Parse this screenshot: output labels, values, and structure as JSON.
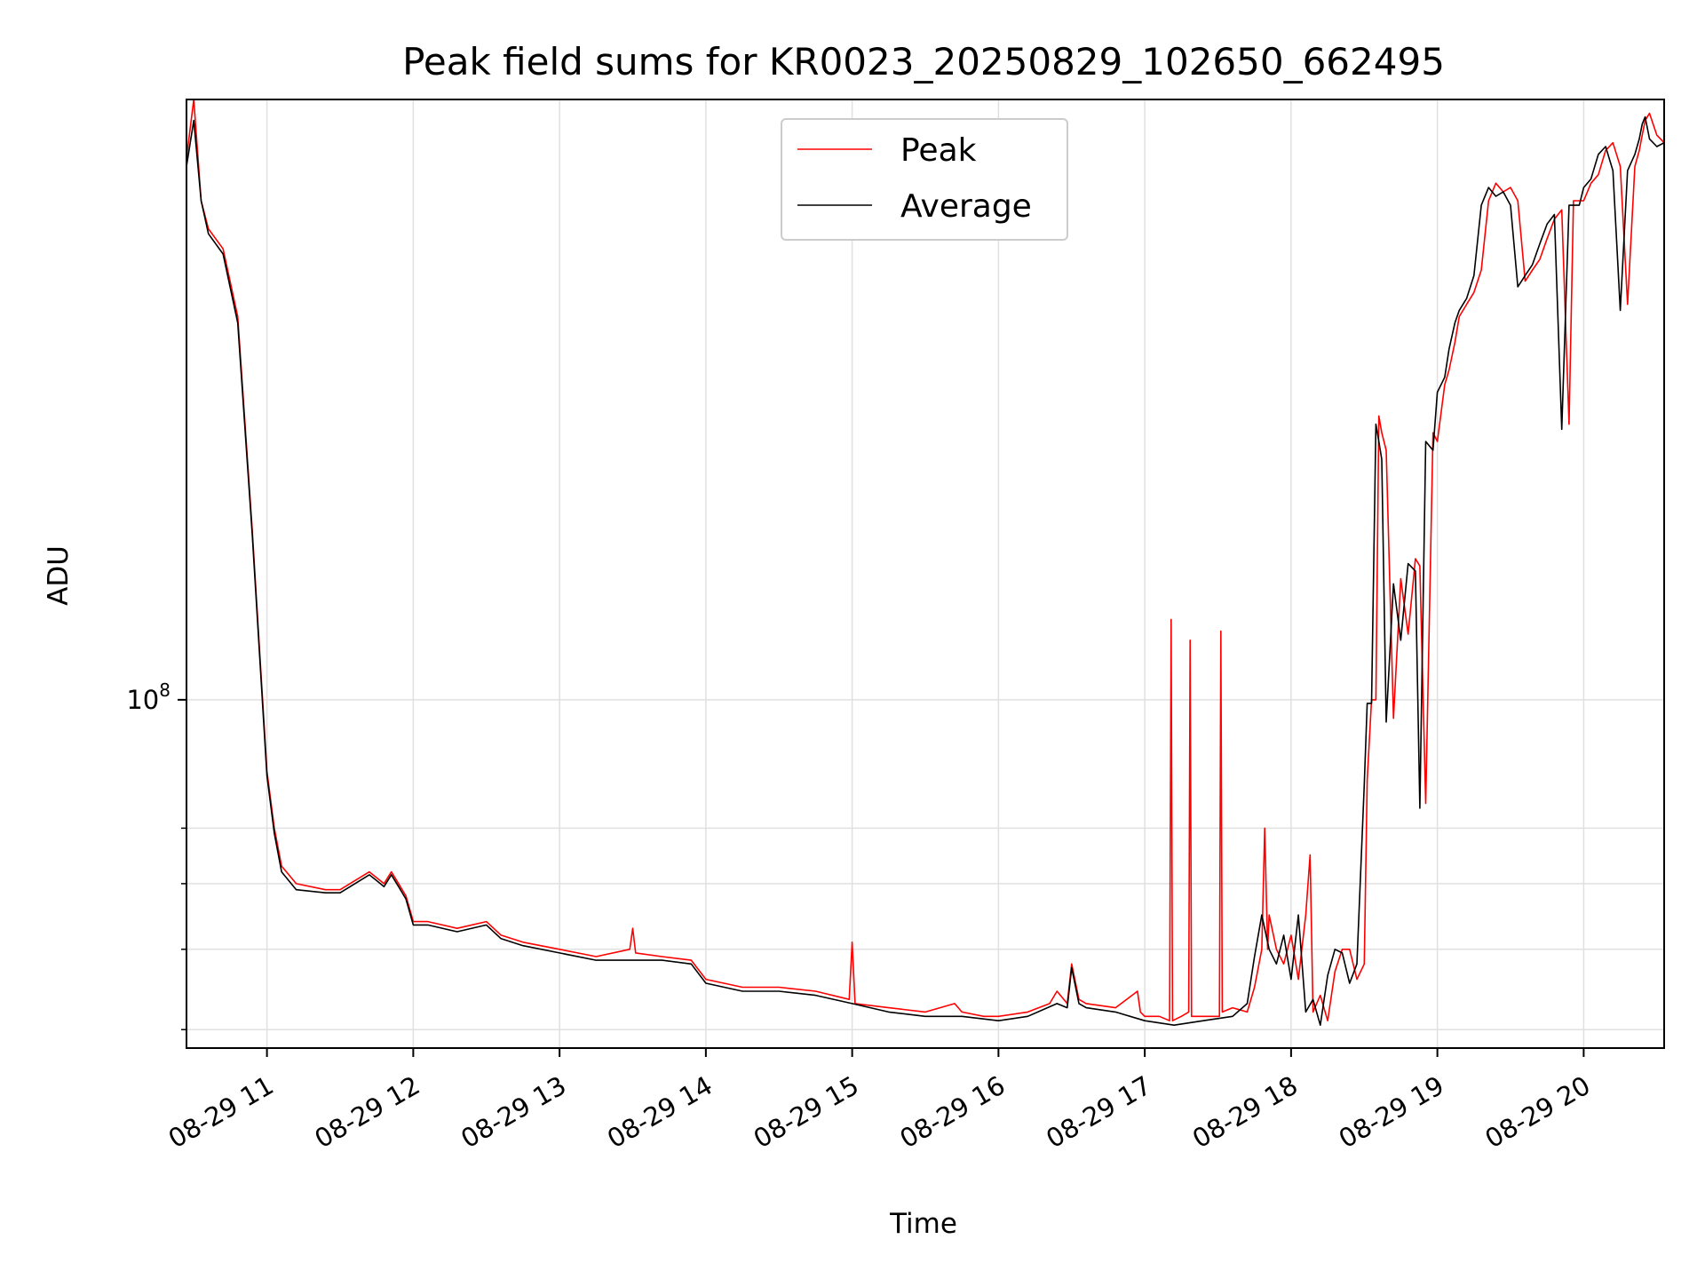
{
  "chart_data": {
    "type": "line",
    "title": "Peak field sums for KR0023_20250829_102650_662495",
    "xlabel": "Time",
    "ylabel": "ADU",
    "yscale": "log",
    "x_tick_labels": [
      "08-29 11",
      "08-29 12",
      "08-29 13",
      "08-29 14",
      "08-29 15",
      "08-29 16",
      "08-29 17",
      "08-29 18",
      "08-29 19",
      "08-29 20"
    ],
    "x_tick_hours": [
      11,
      12,
      13,
      14,
      15,
      16,
      17,
      18,
      19,
      20
    ],
    "xlim_hours": [
      10.45,
      20.55
    ],
    "y_tick_labels": [
      {
        "base": "10",
        "exp": "8"
      }
    ],
    "y_major_tick_values": [
      100000000
    ],
    "y_minor_tick_values": [
      40000000,
      50000000,
      60000000,
      70000000
    ],
    "ylim": [
      38000000,
      530000000
    ],
    "grid": true,
    "legend_position": "upper center",
    "colors": {
      "peak": "#ff0000",
      "average": "#000000",
      "grid": "#e0e0e0"
    },
    "series": [
      {
        "name": "Peak",
        "key": "peak",
        "x_hours": [
          10.45,
          10.5,
          10.55,
          10.6,
          10.7,
          10.8,
          10.9,
          11.0,
          11.05,
          11.1,
          11.2,
          11.4,
          11.5,
          11.7,
          11.75,
          11.8,
          11.85,
          11.9,
          11.95,
          12.0,
          12.1,
          12.3,
          12.5,
          12.6,
          12.75,
          13.0,
          13.25,
          13.48,
          13.5,
          13.52,
          13.7,
          13.9,
          14.0,
          14.25,
          14.5,
          14.75,
          14.98,
          15.0,
          15.02,
          15.25,
          15.5,
          15.7,
          15.75,
          15.9,
          16.0,
          16.2,
          16.35,
          16.4,
          16.47,
          16.5,
          16.55,
          16.6,
          16.8,
          16.95,
          16.97,
          17.0,
          17.1,
          17.17,
          17.18,
          17.19,
          17.25,
          17.3,
          17.31,
          17.32,
          17.4,
          17.51,
          17.52,
          17.53,
          17.6,
          17.7,
          17.75,
          17.8,
          17.82,
          17.84,
          17.85,
          17.9,
          17.95,
          18.0,
          18.05,
          18.1,
          18.13,
          18.15,
          18.2,
          18.25,
          18.3,
          18.35,
          18.4,
          18.45,
          18.5,
          18.52,
          18.55,
          18.58,
          18.6,
          18.62,
          18.65,
          18.7,
          18.75,
          18.8,
          18.85,
          18.88,
          18.92,
          18.97,
          19.0,
          19.05,
          19.08,
          19.12,
          19.15,
          19.2,
          19.25,
          19.3,
          19.35,
          19.4,
          19.45,
          19.5,
          19.55,
          19.6,
          19.65,
          19.7,
          19.75,
          19.8,
          19.85,
          19.9,
          19.93,
          19.97,
          20.0,
          20.05,
          20.1,
          20.15,
          20.2,
          20.25,
          20.3,
          20.35,
          20.38,
          20.4,
          20.42,
          20.45,
          20.5,
          20.55
        ],
        "y": [
          450000000,
          530000000,
          400000000,
          370000000,
          350000000,
          290000000,
          160000000,
          82000000,
          70000000,
          63000000,
          60000000,
          59000000,
          59000000,
          62000000,
          61000000,
          60000000,
          62000000,
          60000000,
          58000000,
          54000000,
          54000000,
          53000000,
          54000000,
          52000000,
          51000000,
          50000000,
          49000000,
          50000000,
          53000000,
          49500000,
          49000000,
          48500000,
          46000000,
          45000000,
          45000000,
          44500000,
          43500000,
          51000000,
          43000000,
          42500000,
          42000000,
          43000000,
          42000000,
          41500000,
          41500000,
          42000000,
          43000000,
          44500000,
          43000000,
          48000000,
          43500000,
          43000000,
          42500000,
          44500000,
          42000000,
          41500000,
          41500000,
          41000000,
          125000000,
          41000000,
          41500000,
          42000000,
          118000000,
          41500000,
          41500000,
          41500000,
          121000000,
          42000000,
          42500000,
          42000000,
          45000000,
          50000000,
          70000000,
          50000000,
          55000000,
          50000000,
          48000000,
          52000000,
          46000000,
          55000000,
          65000000,
          42000000,
          44000000,
          41000000,
          47000000,
          50000000,
          50000000,
          46000000,
          48000000,
          80000000,
          100000000,
          100000000,
          220000000,
          210000000,
          200000000,
          95000000,
          140000000,
          120000000,
          148000000,
          145000000,
          75000000,
          210000000,
          205000000,
          240000000,
          250000000,
          270000000,
          290000000,
          300000000,
          310000000,
          330000000,
          400000000,
          420000000,
          410000000,
          415000000,
          400000000,
          320000000,
          330000000,
          340000000,
          360000000,
          380000000,
          390000000,
          215000000,
          400000000,
          400000000,
          400000000,
          420000000,
          430000000,
          460000000,
          470000000,
          440000000,
          300000000,
          440000000,
          460000000,
          480000000,
          500000000,
          510000000,
          480000000,
          470000000
        ]
      },
      {
        "name": "Average",
        "key": "average",
        "x_hours": [
          10.45,
          10.5,
          10.55,
          10.6,
          10.7,
          10.8,
          10.9,
          11.0,
          11.05,
          11.1,
          11.2,
          11.4,
          11.5,
          11.7,
          11.75,
          11.8,
          11.85,
          11.9,
          11.95,
          12.0,
          12.1,
          12.3,
          12.5,
          12.6,
          12.75,
          13.0,
          13.25,
          13.5,
          13.7,
          13.9,
          14.0,
          14.25,
          14.5,
          14.75,
          15.0,
          15.25,
          15.5,
          15.75,
          16.0,
          16.2,
          16.4,
          16.47,
          16.5,
          16.55,
          16.6,
          16.8,
          17.0,
          17.2,
          17.4,
          17.6,
          17.7,
          17.75,
          17.8,
          17.85,
          17.9,
          17.95,
          18.0,
          18.05,
          18.1,
          18.15,
          18.2,
          18.25,
          18.3,
          18.35,
          18.4,
          18.45,
          18.5,
          18.52,
          18.55,
          18.58,
          18.6,
          18.62,
          18.65,
          18.7,
          18.75,
          18.8,
          18.85,
          18.88,
          18.92,
          18.97,
          19.0,
          19.05,
          19.08,
          19.12,
          19.15,
          19.2,
          19.25,
          19.3,
          19.35,
          19.4,
          19.45,
          19.5,
          19.55,
          19.6,
          19.65,
          19.7,
          19.75,
          19.8,
          19.85,
          19.9,
          19.93,
          19.97,
          20.0,
          20.05,
          20.1,
          20.15,
          20.2,
          20.25,
          20.3,
          20.35,
          20.38,
          20.4,
          20.42,
          20.45,
          20.5,
          20.55
        ],
        "y": [
          440000000,
          500000000,
          400000000,
          365000000,
          345000000,
          285000000,
          158000000,
          81000000,
          69000000,
          62000000,
          59000000,
          58500000,
          58500000,
          61500000,
          60500000,
          59500000,
          61500000,
          59500000,
          57500000,
          53500000,
          53500000,
          52500000,
          53500000,
          51500000,
          50500000,
          49500000,
          48500000,
          48500000,
          48500000,
          48000000,
          45500000,
          44500000,
          44500000,
          44000000,
          43000000,
          42000000,
          41500000,
          41500000,
          41000000,
          41500000,
          43000000,
          42500000,
          47500000,
          43000000,
          42500000,
          42000000,
          41000000,
          40500000,
          41000000,
          41500000,
          43000000,
          49000000,
          55000000,
          50000000,
          48000000,
          52000000,
          46000000,
          55000000,
          42000000,
          43500000,
          40500000,
          46500000,
          50000000,
          49500000,
          45500000,
          48000000,
          79000000,
          99000000,
          99000000,
          215000000,
          205000000,
          195000000,
          94000000,
          138000000,
          118000000,
          146000000,
          143000000,
          74000000,
          205000000,
          200000000,
          235000000,
          245000000,
          265000000,
          285000000,
          295000000,
          305000000,
          325000000,
          395000000,
          415000000,
          405000000,
          410000000,
          395000000,
          315000000,
          325000000,
          335000000,
          355000000,
          375000000,
          385000000,
          212000000,
          395000000,
          395000000,
          395000000,
          415000000,
          425000000,
          455000000,
          465000000,
          435000000,
          295000000,
          435000000,
          455000000,
          475000000,
          495000000,
          505000000,
          475000000,
          465000000,
          470000000
        ]
      }
    ]
  }
}
